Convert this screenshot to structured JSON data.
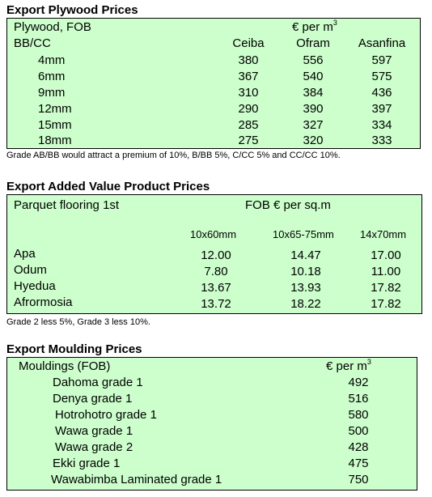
{
  "plywood": {
    "title": "Export Plywood Prices",
    "head1": "Plywood, FOB",
    "head2": "BB/CC",
    "unit": "€ per m",
    "unit_sup": "3",
    "columns": [
      "Ceiba",
      "Ofram",
      "Asanfina"
    ],
    "rows": [
      {
        "label": "4mm",
        "values": [
          "380",
          "556",
          "597"
        ]
      },
      {
        "label": "6mm",
        "values": [
          "367",
          "540",
          "575"
        ]
      },
      {
        "label": "9mm",
        "values": [
          "310",
          "384",
          "436"
        ]
      },
      {
        "label": "12mm",
        "values": [
          "290",
          "390",
          "397"
        ]
      },
      {
        "label": "15mm",
        "values": [
          "285",
          "327",
          "334"
        ]
      },
      {
        "label": "18mm",
        "values": [
          "275",
          "320",
          "333"
        ]
      }
    ],
    "note": "Grade AB/BB would attract a premium of 10%, B/BB 5%, C/CC 5% and CC/CC 10%."
  },
  "added_value": {
    "title": "Export Added Value Product Prices",
    "head1": "Parquet flooring 1st",
    "unit": "FOB € per sq.m",
    "columns": [
      "10x60mm",
      "10x65-75mm",
      "14x70mm"
    ],
    "rows": [
      {
        "label": "Apa",
        "values": [
          "12.00",
          "14.47",
          "17.00"
        ]
      },
      {
        "label": "Odum",
        "values": [
          "7.80",
          "10.18",
          "11.00"
        ]
      },
      {
        "label": "Hyedua",
        "values": [
          "13.67",
          "13.93",
          "17.82"
        ]
      },
      {
        "label": "Afrormosia",
        "values": [
          "13.72",
          "18.22",
          "17.82"
        ]
      }
    ],
    "note": "Grade 2 less 5%, Grade 3 less 10%."
  },
  "moulding": {
    "title": "Export Moulding Prices",
    "head1": "Mouldings (FOB)",
    "unit": "€ per m",
    "unit_sup": "3",
    "rows": [
      {
        "label": "Dahoma grade 1",
        "value": "492"
      },
      {
        "label": "Denya grade 1",
        "value": "516"
      },
      {
        "label": "Hotrohotro grade 1",
        "value": "580"
      },
      {
        "label": "Wawa grade 1",
        "value": "500"
      },
      {
        "label": "Wawa grade 2",
        "value": "428"
      },
      {
        "label": "Ekki grade 1",
        "value": "475"
      },
      {
        "label": "Wawabimba Laminated grade 1",
        "value": "750"
      }
    ]
  }
}
